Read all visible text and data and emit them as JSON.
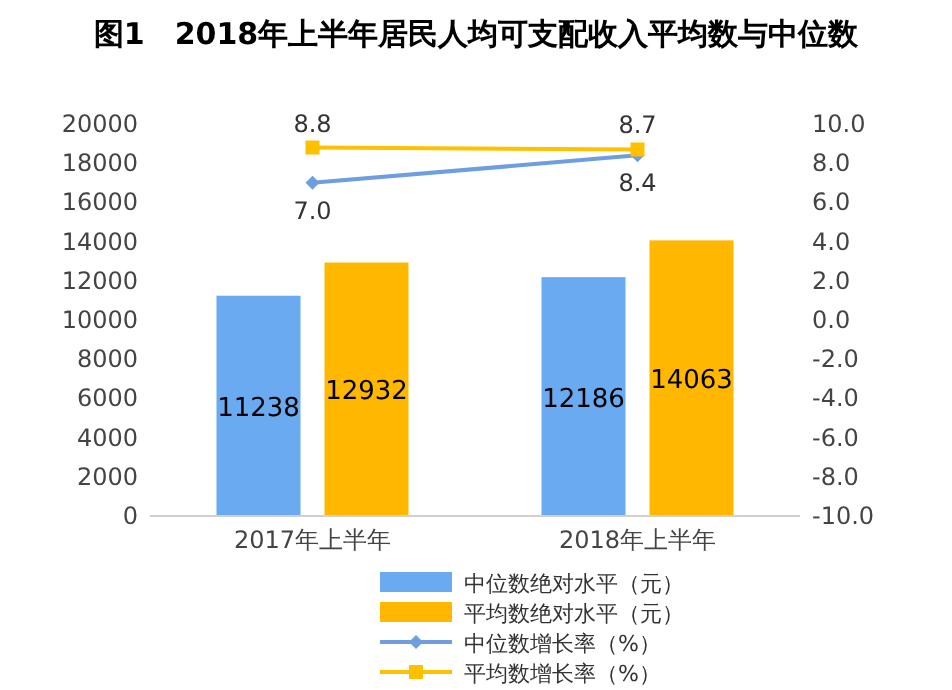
{
  "chart_data": {
    "type": "bar",
    "title": "图1　2018年上半年居民人均可支配收入平均数与中位数",
    "categories": [
      "2017年上半年",
      "2018年上半年"
    ],
    "series": [
      {
        "name": "中位数绝对水平（元）",
        "color": "#6aaaf0",
        "values": [
          11238,
          12186
        ],
        "value_labels": [
          "11238",
          "12186"
        ]
      },
      {
        "name": "平均数绝对水平（元）",
        "color": "#ffb700",
        "values": [
          12932,
          14063
        ],
        "value_labels": [
          "12932",
          "14063"
        ]
      },
      {
        "name": "中位数增长率（%）",
        "type": "line",
        "axis": "y2",
        "color": "#6f9ee0",
        "marker": "diamond",
        "values": [
          7.0,
          8.4
        ],
        "value_labels": [
          "7.0",
          "8.4"
        ]
      },
      {
        "name": "平均数增长率（%）",
        "type": "line",
        "axis": "y2",
        "color": "#ffc000",
        "marker": "square",
        "values": [
          8.8,
          8.7
        ],
        "value_labels": [
          "8.8",
          "8.7"
        ]
      }
    ],
    "ylim": [
      0,
      20000
    ],
    "yticks": [
      0,
      2000,
      4000,
      6000,
      8000,
      10000,
      12000,
      14000,
      16000,
      18000,
      20000
    ],
    "y2lim": [
      -10,
      10
    ],
    "y2ticks": [
      {
        "value": -10,
        "label": "-10.0"
      },
      {
        "value": -8,
        "label": "-8.0"
      },
      {
        "value": -6,
        "label": "-6.0"
      },
      {
        "value": -4,
        "label": "-4.0"
      },
      {
        "value": -2,
        "label": "-2.0"
      },
      {
        "value": 0,
        "label": "0.0"
      },
      {
        "value": 2,
        "label": "2.0"
      },
      {
        "value": 4,
        "label": "4.0"
      },
      {
        "value": 6,
        "label": "6.0"
      },
      {
        "value": 8,
        "label": "8.0"
      },
      {
        "value": 10,
        "label": "10.0"
      }
    ],
    "legend": "bottom"
  }
}
